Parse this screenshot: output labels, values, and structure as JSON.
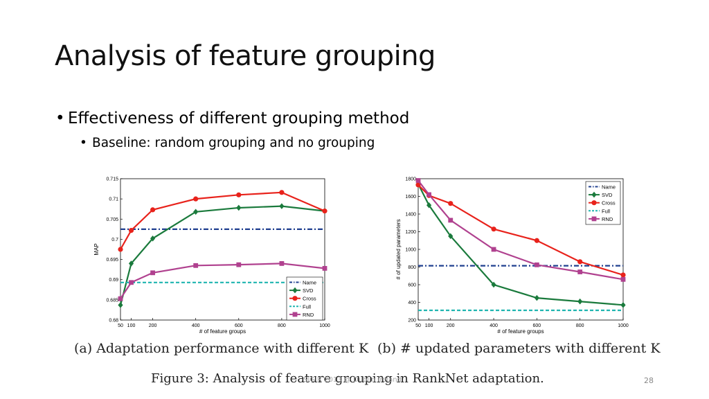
{
  "slide": {
    "title": "Analysis of feature grouping",
    "bullet1": "Effectiveness of different grouping method",
    "bullet2": "Baseline: random grouping and no grouping",
    "caption_a": "(a) Adaptation performance with different K",
    "caption_b": "(b) # updated parameters with different K",
    "figure_caption": "Figure 3: Analysis of feature grouping in RankNet adaptation.",
    "footer": "SIGIR 2013 @ Dublin Ireland",
    "page_number": "28",
    "bullet_glyph": "•"
  },
  "chart_data": [
    {
      "type": "line",
      "xlabel": "# of feature groups",
      "ylabel": "MAP",
      "x": [
        50,
        100,
        200,
        400,
        600,
        800,
        1000
      ],
      "xticks": [
        "50",
        "100",
        "200",
        "400",
        "600",
        "800",
        "1000"
      ],
      "xlim": [
        50,
        1000
      ],
      "ylim": [
        0.68,
        0.715
      ],
      "yticks": [
        "0.68",
        "0.685",
        "0.69",
        "0.695",
        "0.7",
        "0.705",
        "0.71",
        "0.715"
      ],
      "legend_position": "bottom-right",
      "series": [
        {
          "name": "Name",
          "color": "#1f3f8f",
          "style": "dashdot",
          "marker": "none",
          "values": [
            0.7025,
            0.7025,
            0.7025,
            0.7025,
            0.7025,
            0.7025,
            0.7025
          ]
        },
        {
          "name": "SVD",
          "color": "#1a7a3c",
          "style": "solid",
          "marker": "diamond",
          "values": [
            0.6837,
            0.694,
            0.7002,
            0.7068,
            0.7078,
            0.7082,
            0.707
          ]
        },
        {
          "name": "Cross",
          "color": "#e8221b",
          "style": "solid",
          "marker": "circle",
          "values": [
            0.6975,
            0.7022,
            0.7073,
            0.71,
            0.711,
            0.7116,
            0.707
          ]
        },
        {
          "name": "Full",
          "color": "#1fb5b0",
          "style": "dashed",
          "marker": "none",
          "values": [
            0.6893,
            0.6893,
            0.6893,
            0.6893,
            0.6893,
            0.6893,
            0.6893
          ]
        },
        {
          "name": "RND",
          "color": "#b0418f",
          "style": "solid",
          "marker": "square",
          "values": [
            0.6853,
            0.6893,
            0.6917,
            0.6935,
            0.6937,
            0.694,
            0.6928
          ]
        }
      ]
    },
    {
      "type": "line",
      "xlabel": "# of feature groups",
      "ylabel": "# of updated parameters",
      "x": [
        50,
        100,
        200,
        400,
        600,
        800,
        1000
      ],
      "xticks": [
        "50",
        "100",
        "200",
        "400",
        "600",
        "800",
        "1000"
      ],
      "xlim": [
        50,
        1000
      ],
      "ylim": [
        200,
        1800
      ],
      "yticks": [
        "200",
        "400",
        "600",
        "800",
        "1000",
        "1200",
        "1400",
        "1600",
        "1800"
      ],
      "legend_position": "top-right",
      "series": [
        {
          "name": "Name",
          "color": "#1f3f8f",
          "style": "dashdot",
          "marker": "none",
          "values": [
            815,
            815,
            815,
            815,
            815,
            815,
            815
          ]
        },
        {
          "name": "SVD",
          "color": "#1a7a3c",
          "style": "solid",
          "marker": "diamond",
          "values": [
            1740,
            1500,
            1150,
            600,
            450,
            410,
            370
          ]
        },
        {
          "name": "Cross",
          "color": "#e8221b",
          "style": "solid",
          "marker": "circle",
          "values": [
            1730,
            1610,
            1520,
            1230,
            1100,
            860,
            710
          ]
        },
        {
          "name": "Full",
          "color": "#1fb5b0",
          "style": "dashed",
          "marker": "none",
          "values": [
            310,
            310,
            310,
            310,
            310,
            310,
            310
          ]
        },
        {
          "name": "RND",
          "color": "#b0418f",
          "style": "solid",
          "marker": "square",
          "values": [
            1780,
            1620,
            1330,
            1000,
            825,
            745,
            660
          ]
        }
      ]
    }
  ]
}
